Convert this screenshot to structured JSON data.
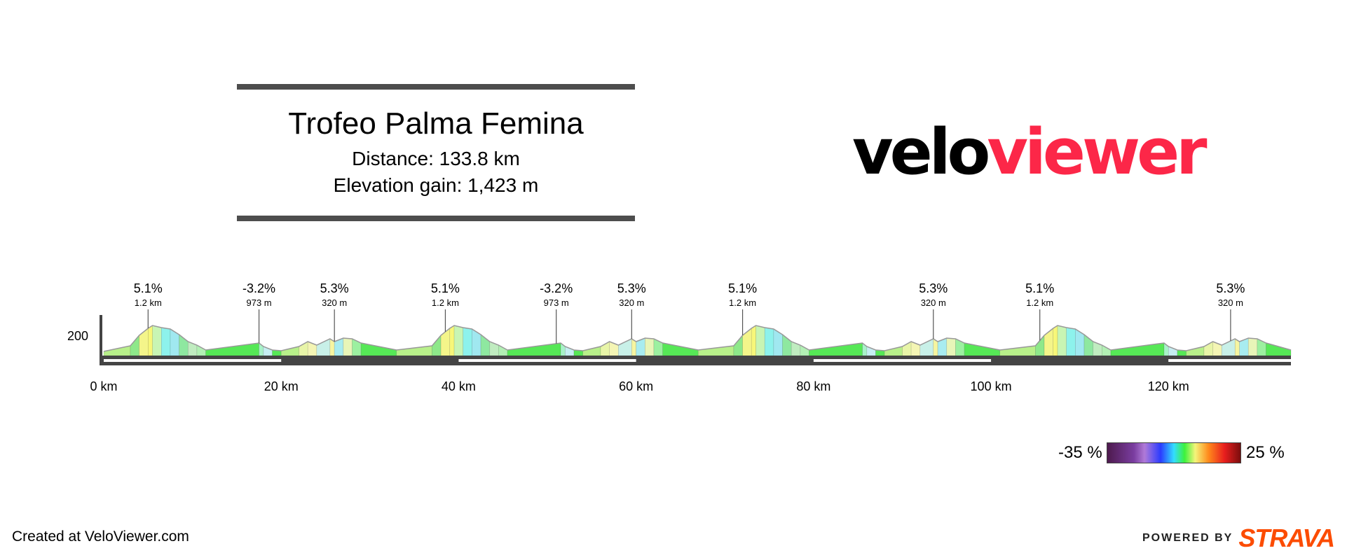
{
  "header": {
    "route_name": "Trofeo Palma Femina",
    "distance_text": "Distance: 133.8 km",
    "elevation_text": "Elevation gain: 1,423 m"
  },
  "logo": {
    "part1": "velo",
    "part2": "viewer",
    "colors": {
      "part1": "#000000",
      "part2": "#fc2748"
    }
  },
  "chart_data": {
    "type": "area",
    "title": "",
    "xlabel": "",
    "ylabel": "",
    "x_unit": "km",
    "xlim": [
      0,
      133.8
    ],
    "x_ticks": [
      0,
      20,
      40,
      60,
      80,
      100,
      120
    ],
    "x_tick_labels": [
      "0 km",
      "20 km",
      "40 km",
      "60 km",
      "80 km",
      "100 km",
      "120 km"
    ],
    "y_ticks": [
      200
    ],
    "y_tick_labels": [
      "200"
    ],
    "ylim": [
      0,
      550
    ],
    "profile": {
      "x": [
        0,
        3,
        4,
        5,
        5.5,
        6.5,
        7.5,
        8.5,
        9.5,
        10.5,
        11.5,
        17.5,
        18,
        19,
        20,
        22,
        23,
        24,
        25.5,
        26,
        27,
        28,
        29,
        33,
        37,
        38,
        39,
        39.5,
        40.5,
        41.5,
        42.5,
        43.5,
        44.5,
        45.5,
        51.5,
        52,
        53,
        54,
        56,
        57,
        58,
        59.5,
        60,
        61,
        62,
        63,
        67,
        71,
        72,
        73,
        73.5,
        74.5,
        75.5,
        76.5,
        77.5,
        78.5,
        79.5,
        85.5,
        86,
        87,
        88,
        90,
        91,
        92,
        93.5,
        94,
        95,
        96,
        97,
        101,
        105,
        106,
        107,
        107.5,
        108.5,
        109.5,
        110.5,
        111.5,
        112.5,
        113.5,
        119.5,
        120,
        121,
        122,
        124,
        125,
        126,
        127.5,
        128,
        129,
        130,
        131,
        133.8
      ],
      "y": [
        60,
        140,
        290,
        390,
        430,
        400,
        380,
        300,
        200,
        150,
        80,
        180,
        130,
        80,
        70,
        130,
        200,
        150,
        240,
        200,
        250,
        240,
        180,
        80,
        140,
        290,
        390,
        430,
        400,
        380,
        300,
        200,
        150,
        80,
        180,
        130,
        80,
        70,
        130,
        200,
        150,
        240,
        200,
        250,
        240,
        180,
        80,
        140,
        290,
        390,
        430,
        400,
        380,
        300,
        200,
        150,
        80,
        180,
        130,
        80,
        70,
        130,
        200,
        150,
        240,
        200,
        250,
        240,
        180,
        80,
        140,
        290,
        390,
        430,
        400,
        380,
        300,
        200,
        150,
        80,
        180,
        130,
        80,
        70,
        130,
        200,
        150,
        240,
        200,
        250,
        240,
        180,
        80
      ]
    },
    "segment_colors": [
      "#b8f08a",
      "#8ee88a",
      "#f4f58a",
      "#f7f779",
      "#c8f5b4",
      "#8df2ec",
      "#a0e8f0",
      "#8ee8a0",
      "#c0ecc0",
      "#b2f0b4",
      "#56e856",
      "#a8f2c8",
      "#c6eef2",
      "#56e856",
      "#b8f08a",
      "#e8f5a8",
      "#f4f5b4",
      "#c8f0e8",
      "#f6f5a0",
      "#a8ecf0",
      "#e8f5b8",
      "#9cf0a0",
      "#56e856",
      "#b8f08a",
      "#8ee88a",
      "#f4f58a",
      "#f7f779",
      "#c8f5b4",
      "#8df2ec",
      "#a0e8f0",
      "#8ee8a0",
      "#c0ecc0",
      "#b2f0b4",
      "#56e856",
      "#a8f2c8",
      "#c6eef2",
      "#56e856",
      "#b8f08a",
      "#e8f5a8",
      "#f4f5b4",
      "#c8f0e8",
      "#f6f5a0",
      "#a8ecf0",
      "#e8f5b8",
      "#9cf0a0",
      "#56e856",
      "#b8f08a",
      "#8ee88a",
      "#f4f58a",
      "#f7f779",
      "#c8f5b4",
      "#8df2ec",
      "#a0e8f0",
      "#8ee8a0",
      "#c0ecc0",
      "#b2f0b4",
      "#56e856",
      "#a8f2c8",
      "#c6eef2",
      "#56e856",
      "#b8f08a",
      "#e8f5a8",
      "#f4f5b4",
      "#c8f0e8",
      "#f6f5a0",
      "#a8ecf0",
      "#e8f5b8",
      "#9cf0a0",
      "#56e856",
      "#b8f08a",
      "#8ee88a",
      "#f4f58a",
      "#f7f779",
      "#c8f5b4",
      "#8df2ec",
      "#a0e8f0",
      "#8ee8a0",
      "#c0ecc0",
      "#b2f0b4",
      "#56e856",
      "#a8f2c8",
      "#c6eef2",
      "#56e856",
      "#b8f08a",
      "#e8f5a8",
      "#f4f5b4",
      "#c8f0e8",
      "#f6f5a0",
      "#a8ecf0",
      "#e8f5b8",
      "#9cf0a0",
      "#56e856"
    ],
    "annotations": [
      {
        "x": 5,
        "grade": "5.1%",
        "length": "1.2 km"
      },
      {
        "x": 17.5,
        "grade": "-3.2%",
        "length": "973 m"
      },
      {
        "x": 26,
        "grade": "5.3%",
        "length": "320 m"
      },
      {
        "x": 38.5,
        "grade": "5.1%",
        "length": "1.2 km"
      },
      {
        "x": 51,
        "grade": "-3.2%",
        "length": "973 m"
      },
      {
        "x": 59.5,
        "grade": "5.3%",
        "length": "320 m"
      },
      {
        "x": 72,
        "grade": "5.1%",
        "length": "1.2 km"
      },
      {
        "x": 93.5,
        "grade": "5.3%",
        "length": "320 m"
      },
      {
        "x": 105.5,
        "grade": "5.1%",
        "length": "1.2 km"
      },
      {
        "x": 127,
        "grade": "5.3%",
        "length": "320 m"
      }
    ],
    "legend": {
      "min_label": "-35 %",
      "max_label": "25 %",
      "range": [
        -35,
        25
      ]
    },
    "grid": false
  },
  "footer": {
    "created_text": "Created at VeloViewer.com",
    "powered_by": "POWERED BY",
    "strava": "STRAVA",
    "strava_color": "#fc4c02"
  }
}
